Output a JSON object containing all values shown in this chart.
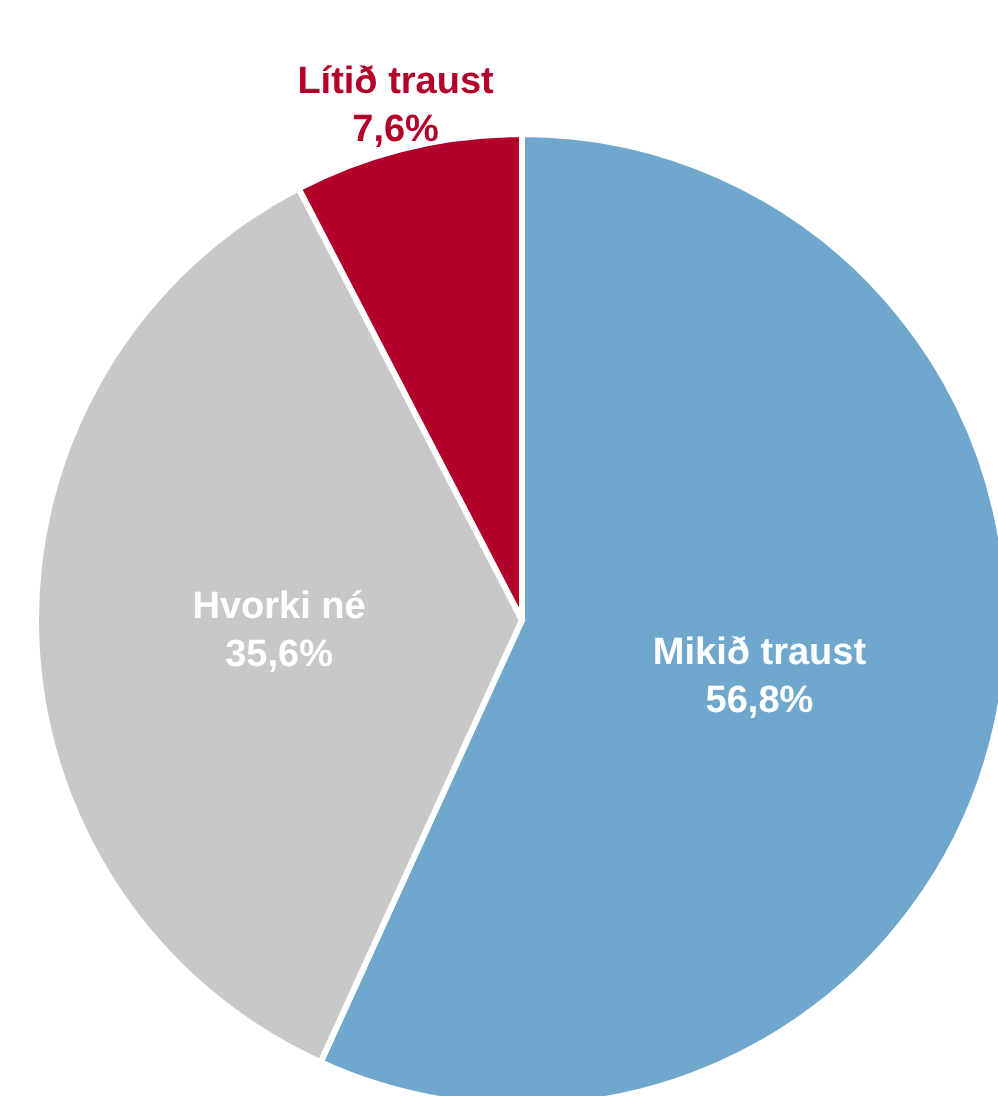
{
  "chart_data": {
    "type": "pie",
    "categories": [
      "Mikið traust",
      "Hvorki né",
      "Lítið traust"
    ],
    "values": [
      56.8,
      35.6,
      7.6
    ],
    "colors": [
      "#6fa8cc",
      "#c8c8c8",
      "#b3002a"
    ],
    "value_labels": [
      "56,8%",
      "35,6%",
      "7,6%"
    ],
    "legend": false
  }
}
